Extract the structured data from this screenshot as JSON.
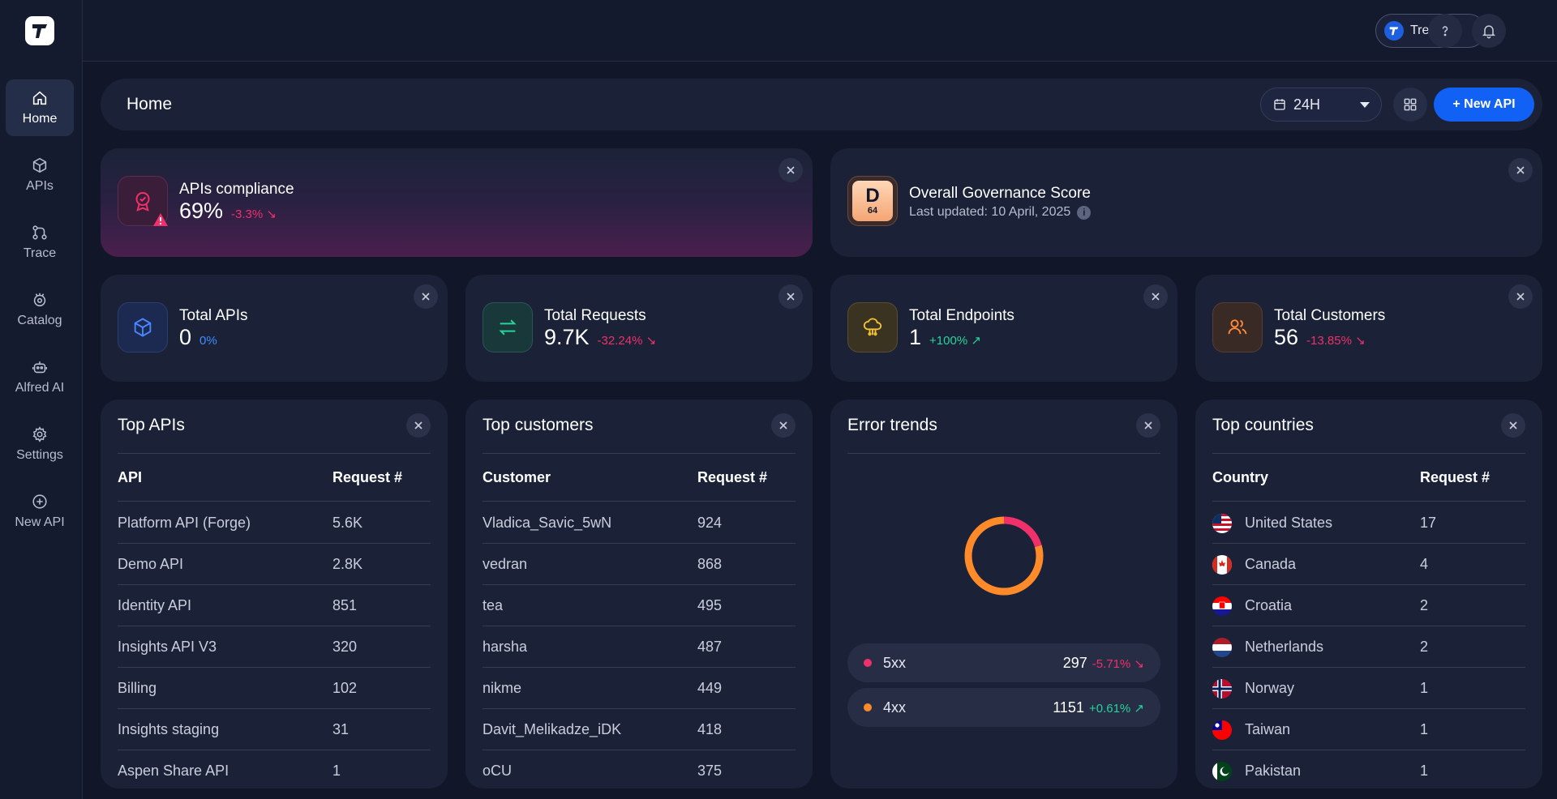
{
  "topbar": {
    "org_name": "Treblle"
  },
  "sidebar": {
    "items": [
      {
        "label": "Home",
        "icon": "home-icon"
      },
      {
        "label": "APIs",
        "icon": "cube-icon"
      },
      {
        "label": "Trace",
        "icon": "trace-icon"
      },
      {
        "label": "Catalog",
        "icon": "catalog-icon"
      },
      {
        "label": "Alfred AI",
        "icon": "robot-icon"
      },
      {
        "label": "Settings",
        "icon": "gear-icon"
      },
      {
        "label": "New API",
        "icon": "plus-circle-icon"
      }
    ]
  },
  "header": {
    "title": "Home",
    "range": "24H",
    "new_api_label": "+ New API"
  },
  "compliance": {
    "label": "APIs compliance",
    "value": "69%",
    "delta": "-3.3% ↘"
  },
  "governance": {
    "label": "Overall Governance Score",
    "grade": "D",
    "score": "64",
    "updated": "Last updated: 10 April, 2025"
  },
  "stats": [
    {
      "label": "Total APIs",
      "value": "0",
      "delta": "0%"
    },
    {
      "label": "Total Requests",
      "value": "9.7K",
      "delta": "-32.24% ↘"
    },
    {
      "label": "Total Endpoints",
      "value": "1",
      "delta": "+100% ↗"
    },
    {
      "label": "Total Customers",
      "value": "56",
      "delta": "-13.85% ↘"
    }
  ],
  "top_apis": {
    "title": "Top APIs",
    "col1": "API",
    "col2": "Request #",
    "rows": [
      {
        "name": "Platform API (Forge)",
        "value": "5.6K"
      },
      {
        "name": "Demo API",
        "value": "2.8K"
      },
      {
        "name": "Identity API",
        "value": "851"
      },
      {
        "name": "Insights API V3",
        "value": "320"
      },
      {
        "name": "Billing",
        "value": "102"
      },
      {
        "name": "Insights staging",
        "value": "31"
      },
      {
        "name": "Aspen Share API",
        "value": "1"
      }
    ]
  },
  "top_customers": {
    "title": "Top customers",
    "col1": "Customer",
    "col2": "Request #",
    "rows": [
      {
        "name": "Vladica_Savic_5wN",
        "value": "924"
      },
      {
        "name": "vedran",
        "value": "868"
      },
      {
        "name": "tea",
        "value": "495"
      },
      {
        "name": "harsha",
        "value": "487"
      },
      {
        "name": "nikme",
        "value": "449"
      },
      {
        "name": "Davit_Melikadze_iDK",
        "value": "418"
      },
      {
        "name": "oCU",
        "value": "375"
      }
    ]
  },
  "error_trends": {
    "title": "Error trends",
    "items": [
      {
        "label": "5xx",
        "value": "297",
        "delta": "-5.71% ↘",
        "color": "#f0306a"
      },
      {
        "label": "4xx",
        "value": "1151",
        "delta": "+0.61% ↗",
        "color": "#ff8a2a"
      }
    ]
  },
  "top_countries": {
    "title": "Top countries",
    "col1": "Country",
    "col2": "Request #",
    "rows": [
      {
        "name": "United States",
        "value": "17"
      },
      {
        "name": "Canada",
        "value": "4"
      },
      {
        "name": "Croatia",
        "value": "2"
      },
      {
        "name": "Netherlands",
        "value": "2"
      },
      {
        "name": "Norway",
        "value": "1"
      },
      {
        "name": "Taiwan",
        "value": "1"
      },
      {
        "name": "Pakistan",
        "value": "1"
      }
    ]
  }
}
